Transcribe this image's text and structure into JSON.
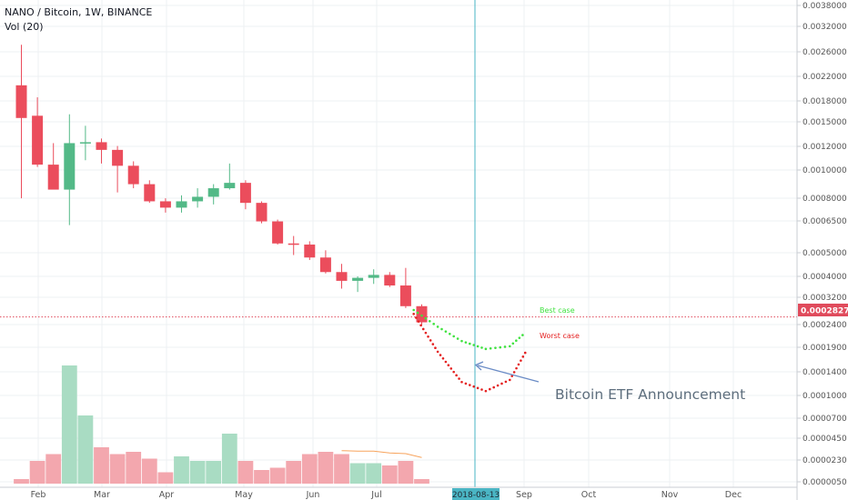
{
  "header": {
    "title": "NANO / Bitcoin, 1W, BINANCE",
    "volume_label": "Vol (20)"
  },
  "colors": {
    "up": "#53b987",
    "down": "#eb4d5c",
    "vol_up": "#a9dcc3",
    "vol_down": "#f3a7ae",
    "vol_ma": "#f7a35c",
    "marker_line": "#4ab5c4",
    "price_line": "#e04b5c",
    "best_case": "#3fe23f",
    "worst_case": "#e42020",
    "arrow": "#6b8cc6",
    "grid": "#eef0f3"
  },
  "chart_data": {
    "type": "candlestick",
    "title": "NANO / Bitcoin, 1W, BINANCE",
    "y_scale": "log",
    "y_ticks": [
      "0.0038000",
      "0.0032000",
      "0.0026000",
      "0.0022000",
      "0.0018000",
      "0.0015000",
      "0.0012000",
      "0.0010000",
      "0.0008000",
      "0.0006500",
      "0.0005000",
      "0.0004000",
      "0.0003200",
      "0.0002400",
      "0.0001900",
      "0.0001400",
      "0.0001000",
      "0.0000700",
      "0.0000450",
      "0.0000230",
      "0.0000050"
    ],
    "x_ticks": [
      "Feb",
      "Mar",
      "Apr",
      "May",
      "Jun",
      "Jul",
      "Sep",
      "Oct",
      "Nov",
      "Dec"
    ],
    "candles": [
      {
        "open": 0.00205,
        "high": 0.0029,
        "low": 0.00078,
        "close": 0.00155
      },
      {
        "open": 0.00158,
        "high": 0.00185,
        "low": 0.00102,
        "close": 0.00104
      },
      {
        "open": 0.00104,
        "high": 0.00125,
        "low": 0.00085,
        "close": 0.00084
      },
      {
        "open": 0.00084,
        "high": 0.0016,
        "low": 0.00062,
        "close": 0.00125
      },
      {
        "open": 0.00125,
        "high": 0.00145,
        "low": 0.00108,
        "close": 0.00126
      },
      {
        "open": 0.00126,
        "high": 0.0013,
        "low": 0.00105,
        "close": 0.00118
      },
      {
        "open": 0.00118,
        "high": 0.00122,
        "low": 0.00082,
        "close": 0.00103
      },
      {
        "open": 0.00103,
        "high": 0.00107,
        "low": 0.00085,
        "close": 0.00088
      },
      {
        "open": 0.00088,
        "high": 0.00091,
        "low": 0.00075,
        "close": 0.00076
      },
      {
        "open": 0.00076,
        "high": 0.00078,
        "low": 0.00069,
        "close": 0.00072
      },
      {
        "open": 0.00072,
        "high": 0.0008,
        "low": 0.00069,
        "close": 0.00076
      },
      {
        "open": 0.00076,
        "high": 0.00085,
        "low": 0.00072,
        "close": 0.00079
      },
      {
        "open": 0.00079,
        "high": 0.00088,
        "low": 0.00074,
        "close": 0.00085
      },
      {
        "open": 0.00085,
        "high": 0.00105,
        "low": 0.00084,
        "close": 0.00089
      },
      {
        "open": 0.00089,
        "high": 0.00091,
        "low": 0.00071,
        "close": 0.00075
      },
      {
        "open": 0.00075,
        "high": 0.00076,
        "low": 0.00063,
        "close": 0.00064
      },
      {
        "open": 0.00064,
        "high": 0.00065,
        "low": 0.000525,
        "close": 0.00053
      },
      {
        "open": 0.00053,
        "high": 0.000565,
        "low": 0.00048,
        "close": 0.000525
      },
      {
        "open": 0.000525,
        "high": 0.00054,
        "low": 0.00046,
        "close": 0.00047
      },
      {
        "open": 0.00047,
        "high": 0.0005,
        "low": 0.00041,
        "close": 0.000415
      },
      {
        "open": 0.000415,
        "high": 0.000445,
        "low": 0.00036,
        "close": 0.000385
      },
      {
        "open": 0.000385,
        "high": 0.0004,
        "low": 0.00035,
        "close": 0.000395
      },
      {
        "open": 0.000395,
        "high": 0.000425,
        "low": 0.000375,
        "close": 0.000405
      },
      {
        "open": 0.000405,
        "high": 0.000415,
        "low": 0.000365,
        "close": 0.00037
      },
      {
        "open": 0.00037,
        "high": 0.00043,
        "low": 0.000305,
        "close": 0.00031
      },
      {
        "open": 0.00031,
        "high": 0.000315,
        "low": 0.000265,
        "close": 0.00027
      }
    ],
    "volume": [
      {
        "v": 2,
        "up": false
      },
      {
        "v": 10,
        "up": false
      },
      {
        "v": 13,
        "up": false
      },
      {
        "v": 52,
        "up": true
      },
      {
        "v": 30,
        "up": true
      },
      {
        "v": 16,
        "up": false
      },
      {
        "v": 13,
        "up": false
      },
      {
        "v": 14,
        "up": false
      },
      {
        "v": 11,
        "up": false
      },
      {
        "v": 5,
        "up": false
      },
      {
        "v": 12,
        "up": true
      },
      {
        "v": 10,
        "up": true
      },
      {
        "v": 10,
        "up": true
      },
      {
        "v": 22,
        "up": true
      },
      {
        "v": 10,
        "up": false
      },
      {
        "v": 6,
        "up": false
      },
      {
        "v": 7,
        "up": false
      },
      {
        "v": 10,
        "up": false
      },
      {
        "v": 13,
        "up": false
      },
      {
        "v": 14,
        "up": false
      },
      {
        "v": 13,
        "up": false
      },
      {
        "v": 9,
        "up": true
      },
      {
        "v": 9,
        "up": true
      },
      {
        "v": 8,
        "up": false
      },
      {
        "v": 10,
        "up": false
      },
      {
        "v": 2,
        "up": false
      }
    ],
    "volume_ma": [
      14.5,
      14.3,
      14.3,
      13.5,
      13.2,
      11.5
    ],
    "current_price": "0.0002827",
    "current_price_value": 0.0002827,
    "marker_date": "2018-08-13",
    "projection_best": {
      "label": "Best case",
      "points": [
        [
          24.5,
          0.0003
        ],
        [
          26,
          0.00026
        ],
        [
          27.5,
          0.00023
        ],
        [
          29,
          0.000215
        ],
        [
          30.5,
          0.00022
        ],
        [
          31.5,
          0.000248
        ]
      ]
    },
    "projection_worst": {
      "label": "Worst case",
      "points": [
        [
          24.5,
          0.00029
        ],
        [
          26,
          0.00021
        ],
        [
          27.5,
          0.000162
        ],
        [
          29,
          0.00015
        ],
        [
          30.5,
          0.000165
        ],
        [
          31.6,
          0.000215
        ]
      ]
    },
    "annotation": "Bitcoin ETF Announcement"
  }
}
